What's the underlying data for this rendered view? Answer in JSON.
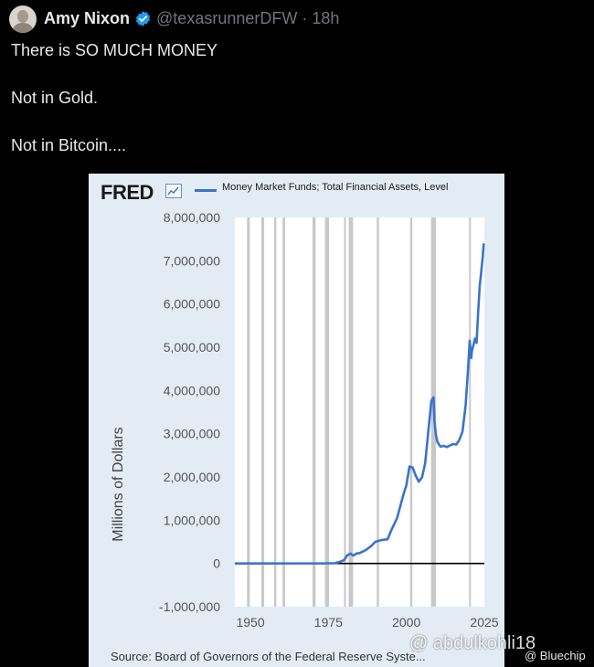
{
  "tweet": {
    "display_name": "Amy Nixon",
    "handle_time": "@texasrunnerDFW · 18h",
    "lines": [
      "There is SO MUCH MONEY",
      "Not in Gold.",
      "Not in Bitcoin...."
    ]
  },
  "card": {
    "logo": "FRED",
    "source": "Source: Board of Governors of the Federal Reserve Syste...",
    "watermark": "@ abdulkohli18",
    "watermark2": "@ Bluechip"
  },
  "colors": {
    "background": "#000000",
    "verified_badge": "#1d9bf0",
    "series_line": "#3a73cd",
    "chart_panel": "#e3ecf5",
    "recession_bar": "#c8c8c8"
  },
  "icons": [
    "verified-badge-icon",
    "fred-chart-icon",
    "avatar"
  ],
  "chart_data": {
    "type": "line",
    "title": "",
    "legend": "Money Market Funds; Total Financial Assets, Level",
    "xlabel": "",
    "ylabel": "Millions of Dollars",
    "xlim": [
      1945,
      2025
    ],
    "ylim": [
      -1000000,
      8000000
    ],
    "x_ticks": [
      1950,
      1975,
      2000,
      2025
    ],
    "y_ticks": [
      -1000000,
      0,
      1000000,
      2000000,
      3000000,
      4000000,
      5000000,
      6000000,
      7000000,
      8000000
    ],
    "y_tick_labels": [
      "-1,000,000",
      "0",
      "1,000,000",
      "2,000,000",
      "3,000,000",
      "4,000,000",
      "5,000,000",
      "6,000,000",
      "7,000,000",
      "8,000,000"
    ],
    "x_tick_labels": [
      "1950",
      "1975",
      "2000",
      "2025"
    ],
    "zero_line": true,
    "recessions": [
      [
        1948.9,
        1949.8
      ],
      [
        1953.5,
        1954.4
      ],
      [
        1957.6,
        1958.3
      ],
      [
        1960.3,
        1961.1
      ],
      [
        1969.9,
        1970.9
      ],
      [
        1973.9,
        1975.2
      ],
      [
        1980.0,
        1980.5
      ],
      [
        1981.5,
        1982.9
      ],
      [
        1990.5,
        1991.2
      ],
      [
        2001.2,
        2001.9
      ],
      [
        2007.9,
        2009.5
      ],
      [
        2020.1,
        2020.4
      ]
    ],
    "series": [
      {
        "name": "Money Market Funds; Total Financial Assets, Level",
        "x": [
          1945,
          1974,
          1975,
          1977,
          1979,
          1980,
          1981,
          1982,
          1983,
          1984,
          1985,
          1987,
          1989,
          1990,
          1992,
          1994,
          1995,
          1997,
          1999,
          2000,
          2001,
          2002,
          2003,
          2004,
          2005,
          2006,
          2007,
          2008,
          2008.7,
          2009,
          2009.5,
          2010,
          2011,
          2012,
          2013,
          2014,
          2015,
          2016,
          2017,
          2018,
          2019,
          2019.7,
          2020.3,
          2020.8,
          2021,
          2021.5,
          2022,
          2022.5,
          2023,
          2023.5,
          2024,
          2024.5,
          2024.8
        ],
        "y": [
          0,
          2000,
          4000,
          4000,
          45000,
          75000,
          185000,
          230000,
          180000,
          230000,
          240000,
          310000,
          420000,
          500000,
          540000,
          560000,
          740000,
          1050000,
          1580000,
          1810000,
          2240000,
          2220000,
          2030000,
          1890000,
          1990000,
          2310000,
          3030000,
          3760000,
          3840000,
          3300000,
          2950000,
          2800000,
          2700000,
          2720000,
          2690000,
          2730000,
          2760000,
          2750000,
          2860000,
          3050000,
          3650000,
          4400000,
          5150000,
          4750000,
          4900000,
          5050000,
          5200000,
          5100000,
          5800000,
          6400000,
          6750000,
          7100000,
          7400000
        ]
      }
    ]
  }
}
